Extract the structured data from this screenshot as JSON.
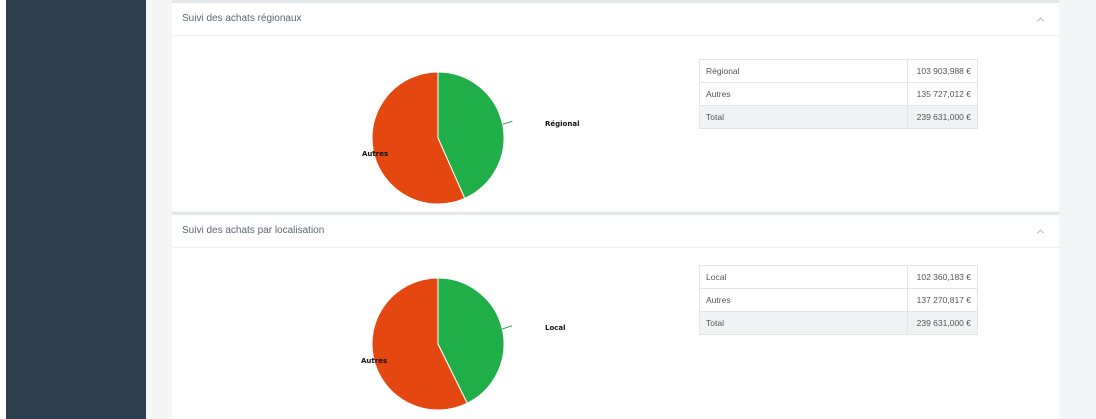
{
  "sections": [
    {
      "title": "Suivi des achats régionaux",
      "rows": [
        {
          "label": "Régional",
          "value": "103 903,988 €"
        },
        {
          "label": "Autres",
          "value": "135 727,012 €"
        },
        {
          "label": "Total",
          "value": "239 631,000 €"
        }
      ],
      "chart_data": {
        "type": "pie",
        "categories": [
          "Régional",
          "Autres"
        ],
        "values": [
          103903.988,
          135727.012
        ],
        "colors": [
          "#1fae48",
          "#e4470f"
        ]
      }
    },
    {
      "title": "Suivi des achats par localisation",
      "rows": [
        {
          "label": "Local",
          "value": "102 360,183 €"
        },
        {
          "label": "Autres",
          "value": "137 270,817 €"
        },
        {
          "label": "Total",
          "value": "239 631,000 €"
        }
      ],
      "chart_data": {
        "type": "pie",
        "categories": [
          "Local",
          "Autres"
        ],
        "values": [
          102360.183,
          137270.817
        ],
        "colors": [
          "#1fae48",
          "#e4470f"
        ]
      }
    }
  ],
  "icons": {
    "collapse": "chevron-up-icon"
  }
}
